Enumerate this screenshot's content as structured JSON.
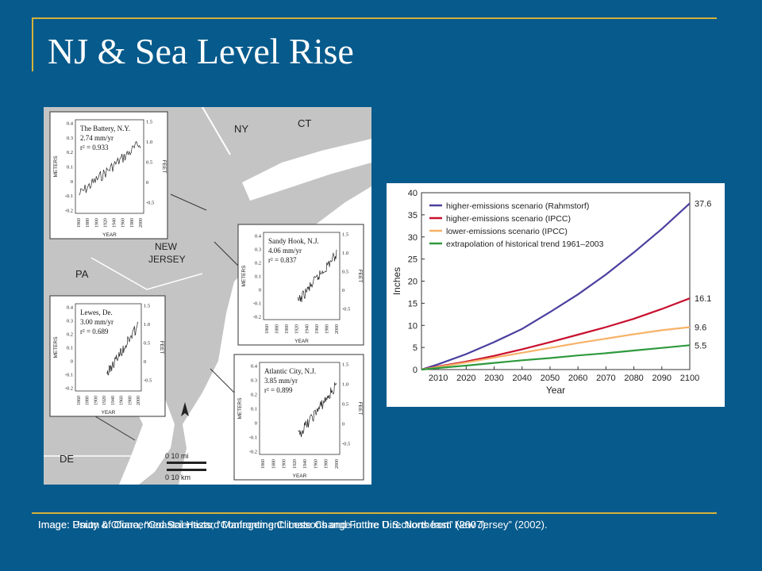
{
  "slide": {
    "title": "NJ & Sea Level Rise",
    "caption_1": "Image: Union of Concerned Scientists, “Confronting Climate Change in the U.S. Northeast” (2007).",
    "caption_2": "Image: Psuty & Ofiara, “Coastal Hazard Management: Lessons and Future Directions from New Jersey” (2002)."
  },
  "map": {
    "labels": {
      "ny": "NY",
      "ct": "CT",
      "nj": "NEW\nJERSEY",
      "pa": "PA",
      "de": "DE"
    },
    "scale": {
      "mi": "0    10 mi",
      "km": "0   10 km"
    },
    "insets": [
      {
        "station": "The Battery, N.Y.",
        "rate": "2.74 mm/yr",
        "r2": "r² = 0.933"
      },
      {
        "station": "Sandy Hook, N.J.",
        "rate": "4.06 mm/yr",
        "r2": "r² = 0.837"
      },
      {
        "station": "Lewes, De.",
        "rate": "3.00 mm/yr",
        "r2": "r² = 0.689"
      },
      {
        "station": "Atlantic City, N.J.",
        "rate": "3.85 mm/yr",
        "r2": "r² = 0.899"
      }
    ],
    "inset_axes": {
      "left_label": "METERS",
      "right_label": "FEET",
      "x_label": "YEAR",
      "left_ticks": [
        "0.4",
        "0.3",
        "0.2",
        "0.1",
        "0",
        "-0.1",
        "-0.2"
      ],
      "right_ticks": [
        "1.5",
        "1.0",
        "0.5",
        "0",
        "-0.5"
      ],
      "x_ticks": [
        "1860",
        "1880",
        "1900",
        "1920",
        "1940",
        "1960",
        "1980",
        "2000"
      ]
    }
  },
  "chart_data": {
    "type": "line",
    "xlabel": "Year",
    "ylabel": "Inches",
    "xlim": [
      2004,
      2100
    ],
    "ylim": [
      0,
      40
    ],
    "x_ticks": [
      2010,
      2020,
      2030,
      2040,
      2050,
      2060,
      2070,
      2080,
      2090,
      2100
    ],
    "y_ticks": [
      0,
      5,
      10,
      15,
      20,
      25,
      30,
      35,
      40
    ],
    "legend_position": "top-left",
    "x": [
      2004,
      2010,
      2020,
      2030,
      2040,
      2050,
      2060,
      2070,
      2080,
      2090,
      2100
    ],
    "series": [
      {
        "name": "higher-emissions scenario (Rahmstorf)",
        "color": "#4a3f9f",
        "values": [
          0,
          1.2,
          3.5,
          6.2,
          9.2,
          13.0,
          17.0,
          21.5,
          26.5,
          31.8,
          37.6
        ],
        "end_label": "37.6"
      },
      {
        "name": "higher-emissions scenario (IPCC)",
        "color": "#c8102e",
        "values": [
          0,
          0.7,
          1.8,
          3.1,
          4.6,
          6.2,
          7.9,
          9.6,
          11.5,
          13.7,
          16.1
        ],
        "end_label": "16.1"
      },
      {
        "name": "lower-emissions scenario (IPCC)",
        "color": "#f7b267",
        "values": [
          0,
          0.6,
          1.6,
          2.7,
          3.8,
          4.9,
          6.0,
          7.0,
          8.0,
          8.9,
          9.6
        ],
        "end_label": "9.6"
      },
      {
        "name": "extrapolation of historical trend 1961–2003",
        "color": "#2e9a3e",
        "values": [
          0,
          0.35,
          0.9,
          1.5,
          2.1,
          2.6,
          3.2,
          3.7,
          4.3,
          4.9,
          5.5
        ],
        "end_label": "5.5"
      }
    ]
  }
}
